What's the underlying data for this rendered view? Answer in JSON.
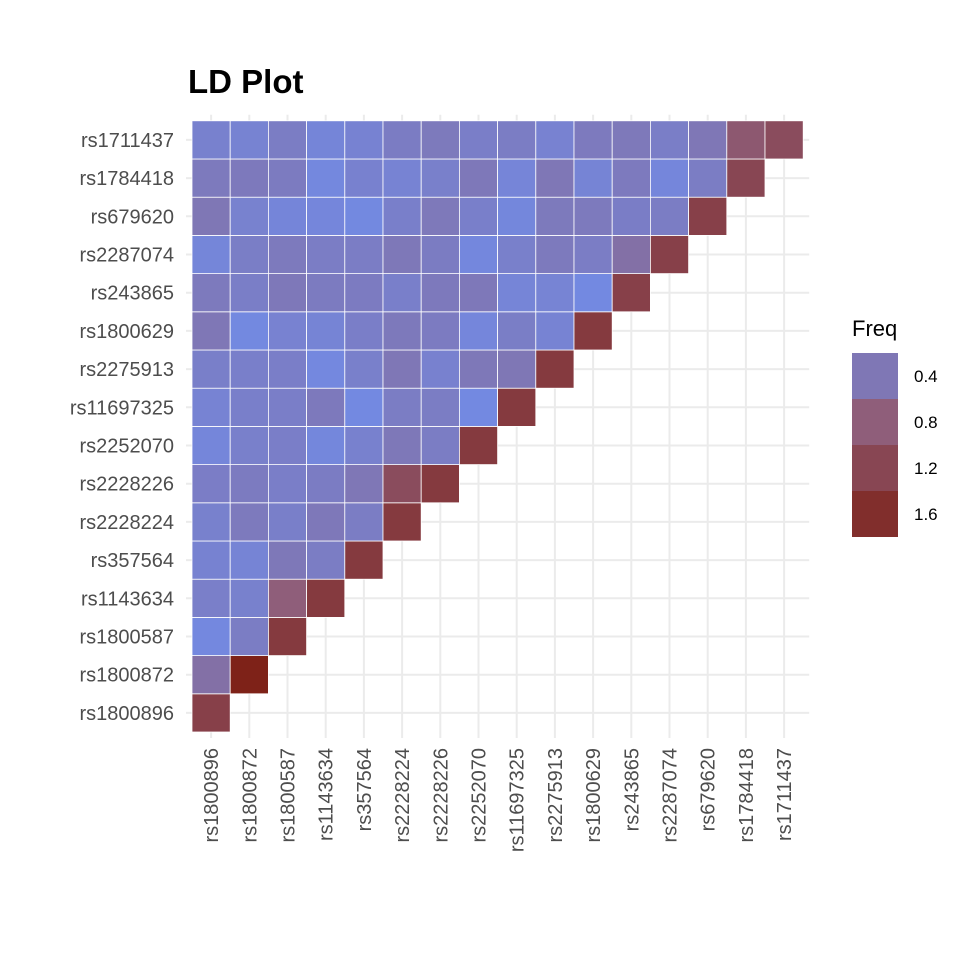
{
  "chart_data": {
    "type": "heatmap",
    "title": "LD Plot",
    "xlabel": "",
    "ylabel": "",
    "snps": [
      "rs1800896",
      "rs1800872",
      "rs1800587",
      "rs1143634",
      "rs357564",
      "rs2228224",
      "rs2228226",
      "rs2252070",
      "rs11697325",
      "rs2275913",
      "rs1800629",
      "rs243865",
      "rs2287074",
      "rs679620",
      "rs1784418",
      "rs1711437"
    ],
    "diagonal": [
      1.3,
      1.8,
      1.4,
      1.4,
      1.4,
      1.4,
      1.4,
      1.4,
      1.4,
      1.4,
      1.4,
      1.3,
      1.3,
      1.3,
      1.2,
      1.1
    ],
    "subdiagonal": [
      0.5,
      0.3,
      0.8,
      0.3,
      0.3,
      1.1,
      0.3,
      0.1,
      0.4,
      0.2,
      0.1,
      0.5,
      0.3,
      0.3,
      0.9
    ],
    "legend": {
      "title": "Freq",
      "position": "right",
      "ticks": [
        "0.4",
        "0.8",
        "1.2",
        "1.6"
      ]
    },
    "colors": {
      "low": "#6f8ff0",
      "mid": "#8f5e7a",
      "high": "#7e2218",
      "grid": "#ebebeb",
      "cell_border": "#ffffff"
    },
    "grid": true
  }
}
